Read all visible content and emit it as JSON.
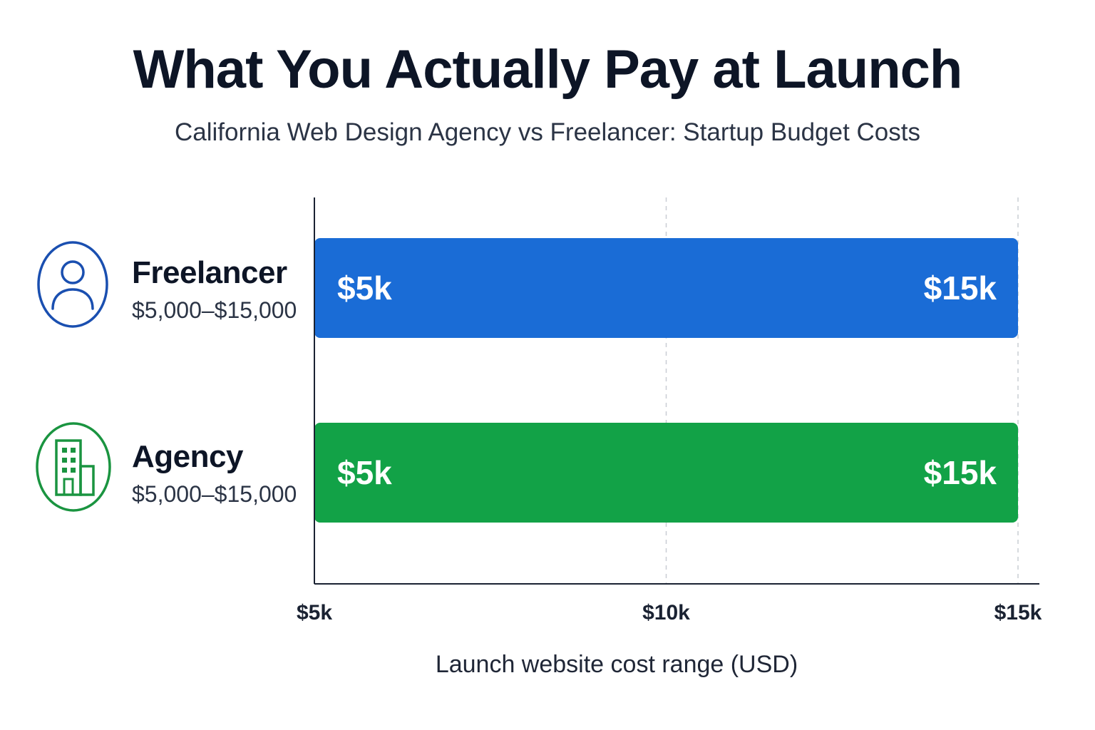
{
  "title": "What You Actually Pay at Launch",
  "subtitle": "California Web Design Agency vs Freelancer: Startup Budget Costs",
  "rows": [
    {
      "name": "Freelancer",
      "range_text": "$5,000–$15,000",
      "icon": "person-icon",
      "color": "#1a6cd6",
      "min_label": "$5k",
      "max_label": "$15k"
    },
    {
      "name": "Agency",
      "range_text": "$5,000–$15,000",
      "icon": "building-icon",
      "color": "#12a247",
      "min_label": "$5k",
      "max_label": "$15k"
    }
  ],
  "chart_data": {
    "type": "bar",
    "orientation": "horizontal",
    "title": "What You Actually Pay at Launch",
    "subtitle": "California Web Design Agency vs Freelancer: Startup Budget Costs",
    "categories": [
      "Freelancer",
      "Agency"
    ],
    "series": [
      {
        "name": "Freelancer",
        "min": 5000,
        "max": 15000,
        "color": "#1a6cd6"
      },
      {
        "name": "Agency",
        "min": 5000,
        "max": 15000,
        "color": "#12a247"
      }
    ],
    "xlabel": "Launch website cost range (USD)",
    "ylabel": "",
    "xlim": [
      5000,
      15000
    ],
    "ticks": [
      {
        "value": 5000,
        "label": "$5k"
      },
      {
        "value": 10000,
        "label": "$10k"
      },
      {
        "value": 15000,
        "label": "$15k"
      }
    ],
    "grid": true,
    "grid_style": "dashed vertical"
  }
}
